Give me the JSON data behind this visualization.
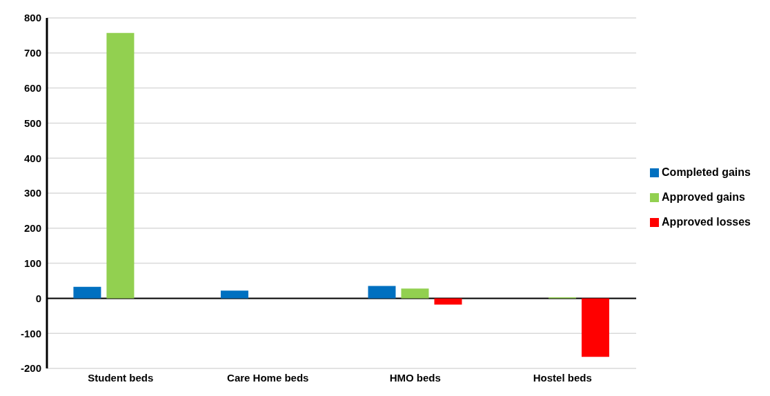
{
  "chart_data": {
    "type": "bar",
    "categories": [
      "Student beds",
      "Care Home beds",
      "HMO beds",
      "Hostel beds"
    ],
    "series": [
      {
        "name": "Completed gains",
        "color": "#0070c0",
        "values": [
          33,
          22,
          35,
          null
        ]
      },
      {
        "name": "Approved gains",
        "color": "#92d050",
        "values": [
          757,
          null,
          28,
          3
        ]
      },
      {
        "name": "Approved losses",
        "color": "#ff0000",
        "values": [
          null,
          null,
          -18,
          -167
        ]
      }
    ],
    "ylim": [
      -200,
      800
    ],
    "yticks": [
      -200,
      -100,
      0,
      100,
      200,
      300,
      400,
      500,
      600,
      700,
      800
    ],
    "grid": "y",
    "legend": "right"
  }
}
